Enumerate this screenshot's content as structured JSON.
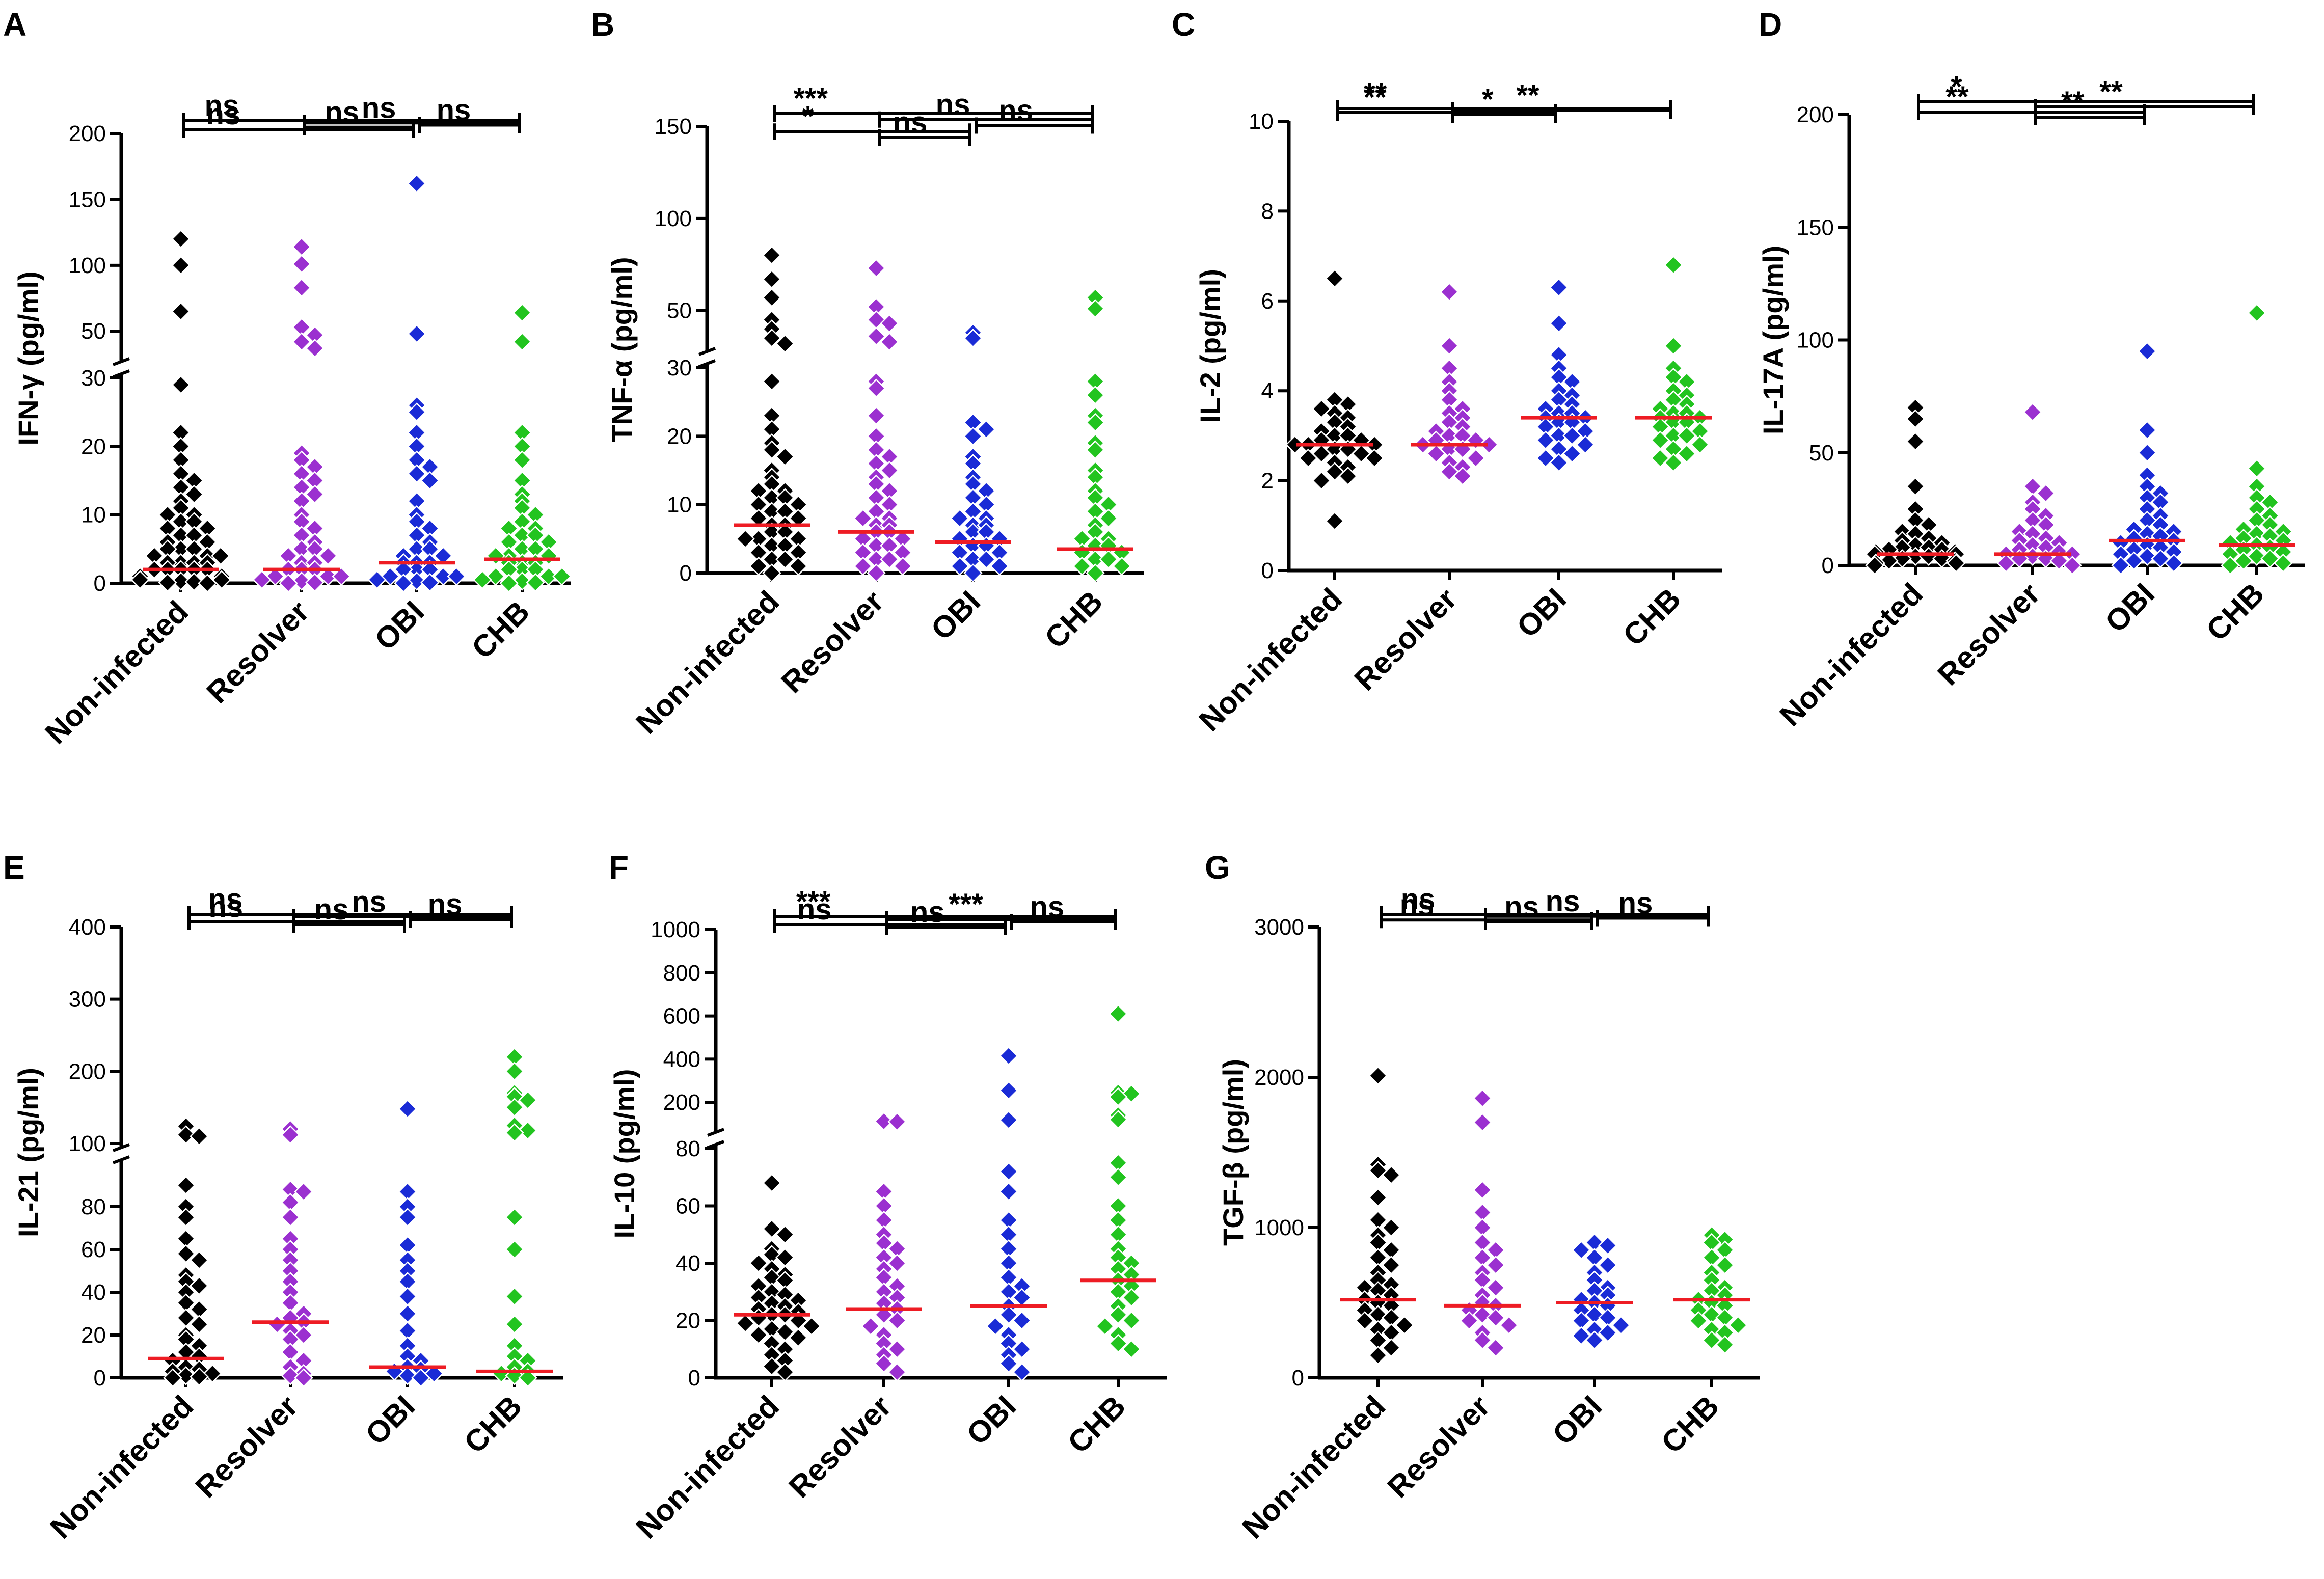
{
  "figure": {
    "group_colors": [
      "#000000",
      "#9b30d0",
      "#1a2bd6",
      "#22c41f"
    ],
    "median_color": "#ee1c24"
  },
  "chart_data": [
    {
      "id": "A",
      "type": "scatter",
      "panel_label": "A",
      "ylabel": "IFN-γ (pg/ml)",
      "categories": [
        "Non-infected",
        "Resolver",
        "OBI",
        "CHB"
      ],
      "y_axis_break": {
        "lower": [
          0,
          30
        ],
        "upper": [
          30,
          200
        ],
        "lower_fraction": 0.46
      },
      "ticks_lower": [
        0,
        10,
        20,
        30
      ],
      "ticks_upper": [
        50,
        100,
        150,
        200
      ],
      "medians": [
        2,
        2,
        3,
        3.5
      ],
      "points": [
        [
          120,
          100,
          65,
          29,
          22,
          20,
          18,
          16,
          15,
          14,
          13,
          12,
          11,
          10,
          10,
          9,
          9,
          8,
          8,
          7,
          7,
          6,
          6,
          5,
          5,
          5,
          4,
          4,
          4,
          3,
          3,
          3,
          3,
          2,
          2,
          2,
          2,
          2,
          1,
          1,
          1,
          1,
          1,
          0.5,
          0.5,
          0.5,
          0.3,
          0.2,
          0.1,
          0
        ],
        [
          114,
          101,
          83,
          53,
          47,
          42,
          37,
          19,
          18,
          17,
          16,
          15,
          14,
          13,
          12,
          10,
          9,
          8,
          7,
          6,
          5,
          5,
          4,
          4,
          3,
          3,
          2,
          2,
          2,
          1,
          1,
          1,
          0.5,
          0.3,
          0.1,
          0
        ],
        [
          162,
          48,
          26,
          25,
          22,
          20,
          18,
          17,
          16,
          15,
          12,
          10,
          9,
          8,
          7,
          6,
          5,
          5,
          4,
          4,
          3,
          3,
          3,
          2,
          2,
          2,
          1,
          1,
          1,
          0.5,
          0.3,
          0.1,
          0
        ],
        [
          64,
          42,
          22,
          20,
          18,
          15,
          13,
          12,
          11,
          10,
          9,
          8,
          8,
          7,
          7,
          6,
          6,
          5,
          5,
          4,
          4,
          4,
          3,
          3,
          3,
          2,
          2,
          2,
          1,
          1,
          1,
          0.5,
          0.3,
          0.1,
          0
        ]
      ],
      "comparisons": [
        {
          "from": 0,
          "to": 2,
          "label": "ns"
        },
        {
          "from": 1,
          "to": 2,
          "label": "ns"
        },
        {
          "from": 2,
          "to": 3,
          "label": "ns"
        },
        {
          "from": 1,
          "to": 3,
          "label": "ns"
        },
        {
          "from": 0,
          "to": 3,
          "label": "ns"
        }
      ]
    },
    {
      "id": "B",
      "type": "scatter",
      "panel_label": "B",
      "ylabel": "TNF-α (pg/ml)",
      "categories": [
        "Non-infected",
        "Resolver",
        "OBI",
        "CHB"
      ],
      "y_axis_break": {
        "lower": [
          0,
          30
        ],
        "upper": [
          30,
          150
        ],
        "lower_fraction": 0.46
      },
      "ticks_lower": [
        0,
        10,
        20,
        30
      ],
      "ticks_upper": [
        50,
        100,
        150
      ],
      "medians": [
        7,
        6,
        4.5,
        3.5
      ],
      "points": [
        [
          80,
          67,
          57,
          45,
          40,
          35,
          32,
          28,
          23,
          21,
          19,
          18,
          17,
          15,
          14,
          13,
          12,
          12,
          11,
          11,
          10,
          10,
          9,
          9,
          8,
          8,
          7,
          7,
          6,
          6,
          5,
          5,
          5,
          4,
          4,
          3,
          3,
          2,
          2,
          1,
          1,
          0
        ],
        [
          73,
          52,
          45,
          43,
          36,
          33,
          28,
          27,
          23,
          20,
          18,
          17,
          16,
          15,
          14,
          13,
          12,
          11,
          10,
          9,
          8,
          8,
          7,
          7,
          6,
          6,
          5,
          5,
          4,
          4,
          3,
          3,
          2,
          2,
          1,
          1,
          0
        ],
        [
          38,
          35,
          22,
          21,
          20,
          17,
          16,
          14,
          13,
          12,
          11,
          10,
          9,
          8,
          8,
          7,
          7,
          6,
          6,
          5,
          5,
          4,
          4,
          3,
          3,
          2,
          2,
          1,
          1,
          0
        ],
        [
          57,
          51,
          28,
          26,
          23,
          22,
          19,
          18,
          15,
          14,
          12,
          11,
          10,
          9,
          8,
          7,
          6,
          5,
          5,
          4,
          4,
          3,
          3,
          2,
          2,
          1,
          1,
          0
        ]
      ],
      "comparisons": [
        {
          "from": 1,
          "to": 2,
          "label": "ns"
        },
        {
          "from": 0,
          "to": 2,
          "label": "*"
        },
        {
          "from": 2,
          "to": 3,
          "label": "ns"
        },
        {
          "from": 1,
          "to": 3,
          "label": "ns"
        },
        {
          "from": 0,
          "to": 3,
          "label": "***"
        }
      ]
    },
    {
      "id": "C",
      "type": "scatter",
      "panel_label": "C",
      "ylabel": "IL-2 (pg/ml)",
      "categories": [
        "Non-infected",
        "Resolver",
        "OBI",
        "CHB"
      ],
      "ylim": [
        0,
        10
      ],
      "ticks": [
        0,
        2,
        4,
        6,
        8,
        10
      ],
      "medians": [
        2.8,
        2.8,
        3.4,
        3.4
      ],
      "points": [
        [
          6.5,
          3.8,
          3.7,
          3.6,
          3.5,
          3.4,
          3.3,
          3.2,
          3.1,
          3.0,
          3.0,
          2.9,
          2.9,
          2.8,
          2.8,
          2.8,
          2.7,
          2.7,
          2.6,
          2.6,
          2.5,
          2.5,
          2.4,
          2.3,
          2.2,
          2.1,
          2.0,
          1.1
        ],
        [
          6.2,
          5.0,
          4.5,
          4.2,
          4.0,
          3.8,
          3.6,
          3.5,
          3.4,
          3.3,
          3.2,
          3.1,
          3.0,
          3.0,
          2.9,
          2.9,
          2.8,
          2.8,
          2.7,
          2.7,
          2.6,
          2.5,
          2.4,
          2.3,
          2.2,
          2.1
        ],
        [
          6.3,
          5.5,
          4.8,
          4.5,
          4.3,
          4.2,
          4.0,
          3.9,
          3.8,
          3.7,
          3.6,
          3.5,
          3.5,
          3.4,
          3.4,
          3.3,
          3.3,
          3.2,
          3.1,
          3.0,
          3.0,
          2.9,
          2.8,
          2.7,
          2.6,
          2.5,
          2.4
        ],
        [
          6.8,
          5.0,
          4.5,
          4.3,
          4.2,
          4.0,
          3.9,
          3.8,
          3.7,
          3.6,
          3.5,
          3.5,
          3.4,
          3.4,
          3.3,
          3.3,
          3.2,
          3.1,
          3.0,
          3.0,
          2.9,
          2.8,
          2.7,
          2.6,
          2.5,
          2.4
        ]
      ],
      "comparisons": [
        {
          "from": 1,
          "to": 2,
          "label": "*"
        },
        {
          "from": 0,
          "to": 2,
          "label": "**"
        },
        {
          "from": 1,
          "to": 3,
          "label": "**"
        },
        {
          "from": 0,
          "to": 3,
          "label": "**"
        }
      ]
    },
    {
      "id": "D",
      "type": "scatter",
      "panel_label": "D",
      "ylabel": "IL-17A (pg/ml)",
      "categories": [
        "Non-infected",
        "Resolver",
        "OBI",
        "CHB"
      ],
      "ylim": [
        0,
        200
      ],
      "ticks": [
        0,
        50,
        100,
        150,
        200
      ],
      "medians": [
        5,
        5,
        11,
        9
      ],
      "points": [
        [
          70,
          65,
          55,
          35,
          25,
          20,
          18,
          15,
          14,
          12,
          11,
          10,
          9,
          8,
          8,
          7,
          7,
          6,
          6,
          5,
          5,
          4,
          4,
          3,
          3,
          2,
          2,
          1,
          1,
          0
        ],
        [
          68,
          35,
          32,
          28,
          25,
          22,
          20,
          18,
          15,
          14,
          12,
          11,
          10,
          9,
          8,
          7,
          6,
          5,
          5,
          4,
          3,
          3,
          2,
          1,
          0
        ],
        [
          95,
          60,
          50,
          40,
          35,
          32,
          30,
          28,
          25,
          22,
          20,
          18,
          16,
          15,
          14,
          13,
          12,
          11,
          10,
          9,
          8,
          7,
          6,
          5,
          4,
          3,
          2,
          1,
          0
        ],
        [
          112,
          43,
          35,
          30,
          28,
          25,
          22,
          20,
          18,
          16,
          15,
          14,
          13,
          12,
          11,
          10,
          9,
          8,
          7,
          6,
          5,
          4,
          3,
          2,
          1,
          0
        ]
      ],
      "comparisons": [
        {
          "from": 1,
          "to": 2,
          "label": "**"
        },
        {
          "from": 0,
          "to": 2,
          "label": "**"
        },
        {
          "from": 1,
          "to": 3,
          "label": "**"
        },
        {
          "from": 0,
          "to": 3,
          "label": "*"
        }
      ]
    },
    {
      "id": "E",
      "type": "scatter",
      "panel_label": "E",
      "ylabel": "IL-21 (pg/ml)",
      "categories": [
        "Non-infected",
        "Resolver",
        "OBI",
        "CHB"
      ],
      "y_axis_break": {
        "lower": [
          0,
          100
        ],
        "upper": [
          100,
          400
        ],
        "lower_fraction": 0.58
      },
      "ticks_lower": [
        0,
        20,
        40,
        60,
        80,
        100
      ],
      "ticks_upper": [
        100,
        200,
        300,
        400
      ],
      "medians": [
        9,
        26,
        5,
        3
      ],
      "points": [
        [
          124,
          112,
          110,
          90,
          80,
          75,
          65,
          58,
          55,
          48,
          45,
          43,
          40,
          35,
          32,
          28,
          25,
          20,
          18,
          15,
          12,
          10,
          8,
          5,
          4,
          3,
          2,
          1,
          0.5,
          0
        ],
        [
          120,
          112,
          88,
          87,
          82,
          75,
          65,
          60,
          55,
          50,
          45,
          40,
          35,
          30,
          28,
          26,
          25,
          22,
          20,
          18,
          12,
          8,
          5,
          2,
          1,
          0
        ],
        [
          148,
          87,
          80,
          75,
          62,
          55,
          50,
          45,
          38,
          30,
          22,
          15,
          10,
          8,
          5,
          4,
          3,
          2,
          1,
          0
        ],
        [
          220,
          200,
          170,
          165,
          160,
          150,
          125,
          118,
          115,
          75,
          60,
          38,
          25,
          15,
          10,
          8,
          5,
          3,
          2,
          1,
          0
        ]
      ],
      "comparisons": [
        {
          "from": 1,
          "to": 2,
          "label": "ns"
        },
        {
          "from": 0,
          "to": 2,
          "label": "ns"
        },
        {
          "from": 2,
          "to": 3,
          "label": "ns"
        },
        {
          "from": 1,
          "to": 3,
          "label": "ns"
        },
        {
          "from": 0,
          "to": 3,
          "label": "ns"
        }
      ]
    },
    {
      "id": "F",
      "type": "scatter",
      "panel_label": "F",
      "ylabel": "IL-10 (pg/ml)",
      "categories": [
        "Non-infected",
        "Resolver",
        "OBI",
        "CHB"
      ],
      "y_axis_break": {
        "lower": [
          0,
          80
        ],
        "upper": [
          80,
          1000
        ],
        "lower_fraction": 0.52
      },
      "ticks_lower": [
        0,
        20,
        40,
        60,
        80
      ],
      "ticks_upper": [
        200,
        400,
        600,
        800,
        1000
      ],
      "medians": [
        22,
        24,
        25,
        34
      ],
      "points": [
        [
          68,
          52,
          50,
          45,
          43,
          42,
          40,
          38,
          36,
          35,
          34,
          32,
          30,
          29,
          28,
          27,
          26,
          25,
          24,
          23,
          22,
          22,
          21,
          20,
          19,
          18,
          17,
          16,
          15,
          14,
          12,
          10,
          8,
          6,
          4,
          2
        ],
        [
          112,
          110,
          65,
          60,
          55,
          50,
          47,
          45,
          42,
          40,
          38,
          35,
          32,
          30,
          28,
          26,
          24,
          22,
          20,
          18,
          15,
          12,
          10,
          8,
          5,
          2
        ],
        [
          415,
          255,
          125,
          118,
          72,
          65,
          55,
          50,
          45,
          40,
          35,
          32,
          30,
          28,
          25,
          22,
          20,
          18,
          15,
          12,
          10,
          8,
          5,
          2
        ],
        [
          610,
          245,
          240,
          225,
          140,
          120,
          75,
          70,
          60,
          55,
          50,
          45,
          42,
          40,
          38,
          36,
          34,
          32,
          30,
          28,
          25,
          22,
          20,
          18,
          15,
          12,
          10
        ]
      ],
      "comparisons": [
        {
          "from": 1,
          "to": 2,
          "label": "ns"
        },
        {
          "from": 0,
          "to": 2,
          "label": "ns"
        },
        {
          "from": 2,
          "to": 3,
          "label": "ns"
        },
        {
          "from": 1,
          "to": 3,
          "label": "***"
        },
        {
          "from": 0,
          "to": 3,
          "label": "***"
        }
      ]
    },
    {
      "id": "G",
      "type": "scatter",
      "panel_label": "G",
      "ylabel": "TGF-β (pg/ml)",
      "categories": [
        "Non-infected",
        "Resolver",
        "OBI",
        "CHB"
      ],
      "ylim": [
        0,
        3000
      ],
      "ticks": [
        0,
        1000,
        2000,
        3000
      ],
      "medians": [
        520,
        480,
        500,
        520
      ],
      "points": [
        [
          2010,
          1420,
          1380,
          1350,
          1200,
          1050,
          1000,
          950,
          900,
          850,
          800,
          750,
          700,
          650,
          620,
          600,
          580,
          550,
          520,
          500,
          480,
          450,
          420,
          400,
          380,
          350,
          320,
          300,
          250,
          200,
          150
        ],
        [
          1860,
          1700,
          1250,
          1100,
          1000,
          900,
          850,
          800,
          750,
          700,
          650,
          600,
          550,
          500,
          480,
          450,
          420,
          400,
          380,
          350,
          300,
          250,
          200
        ],
        [
          900,
          880,
          850,
          800,
          750,
          700,
          650,
          600,
          580,
          550,
          520,
          500,
          480,
          450,
          420,
          400,
          380,
          350,
          320,
          300,
          280,
          250
        ],
        [
          950,
          920,
          900,
          850,
          800,
          750,
          700,
          650,
          600,
          580,
          550,
          520,
          500,
          480,
          450,
          420,
          400,
          380,
          350,
          320,
          300,
          250,
          220
        ]
      ],
      "comparisons": [
        {
          "from": 1,
          "to": 2,
          "label": "ns"
        },
        {
          "from": 0,
          "to": 2,
          "label": "ns"
        },
        {
          "from": 2,
          "to": 3,
          "label": "ns"
        },
        {
          "from": 1,
          "to": 3,
          "label": "ns"
        },
        {
          "from": 0,
          "to": 3,
          "label": "ns"
        }
      ]
    }
  ]
}
